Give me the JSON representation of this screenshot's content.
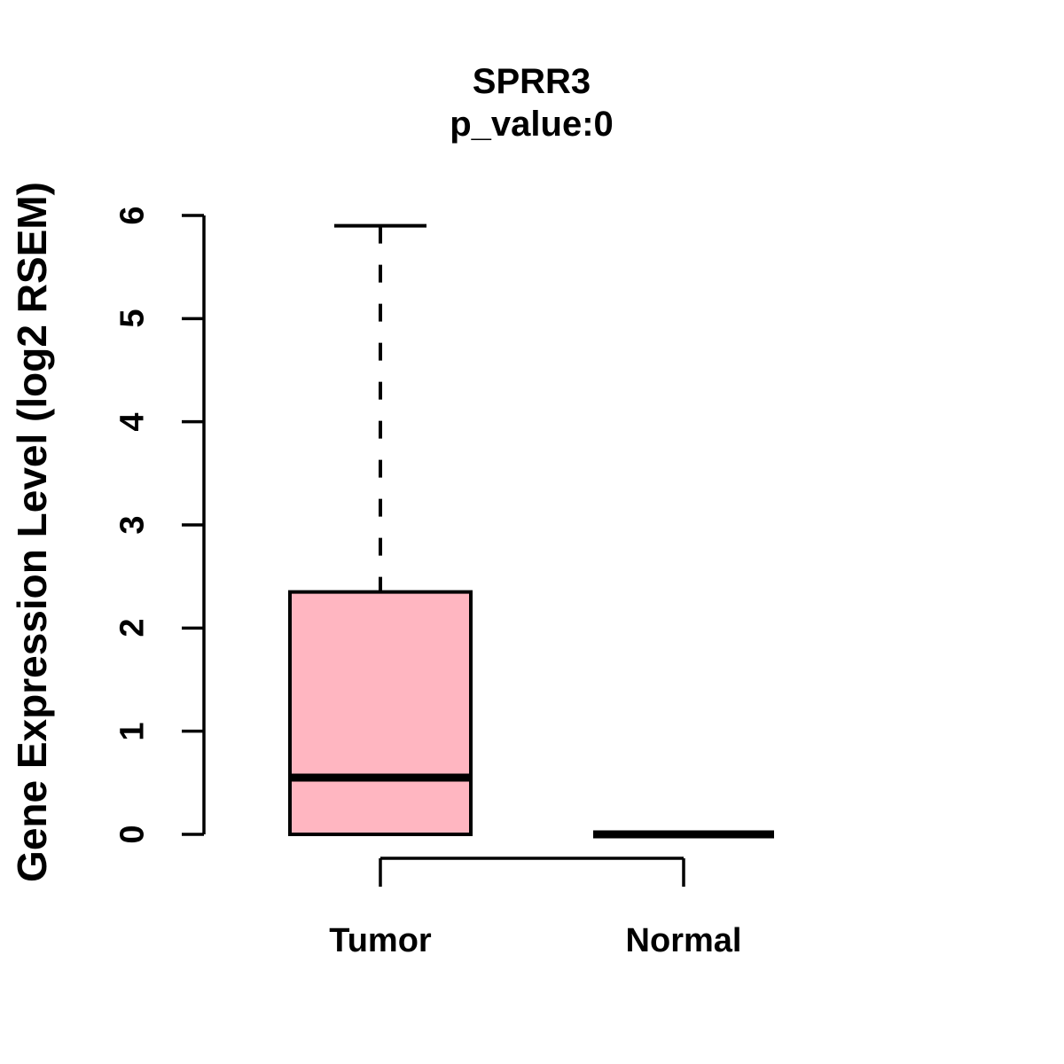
{
  "title": "SPRR3",
  "subtitle": "p_value:0",
  "colors": {
    "box_fill": "#ffb6c1",
    "line": "#000000",
    "background": "#ffffff"
  },
  "chart_data": {
    "type": "boxplot",
    "title": "SPRR3",
    "subtitle": "p_value:0",
    "ylabel": "Gene Expression Level (log2 RSEM)",
    "xlabel": "",
    "ylim": [
      0,
      6
    ],
    "yticks": [
      0,
      1,
      2,
      3,
      4,
      5,
      6
    ],
    "grid": false,
    "legend": "none",
    "categories": [
      "Tumor",
      "Normal"
    ],
    "groups": [
      {
        "label": "Tumor",
        "lower_whisker": 0,
        "q1": 0,
        "median": 0.55,
        "q3": 2.35,
        "upper_whisker": 5.9,
        "box_fill": "#ffb6c1",
        "whisker_style": "dashed"
      },
      {
        "label": "Normal",
        "lower_whisker": 0,
        "q1": 0,
        "median": 0,
        "q3": 0,
        "upper_whisker": 0,
        "box_fill": "#ffb6c1",
        "whisker_style": "none"
      }
    ]
  }
}
